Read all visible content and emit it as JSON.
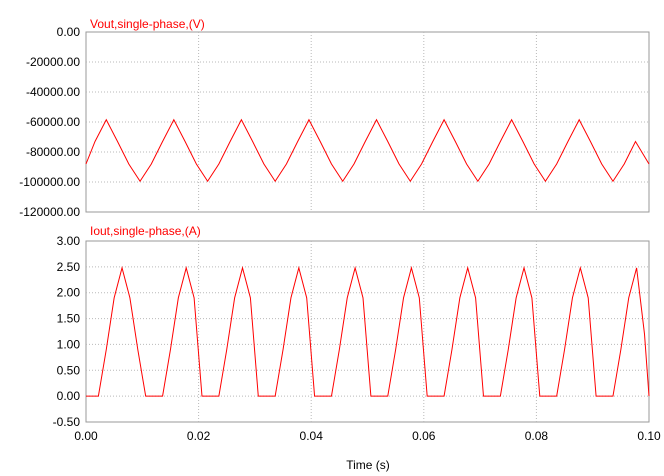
{
  "colors": {
    "trace": "#ff0000",
    "title": "#ff0000",
    "grid": "#b9b9b9",
    "frame": "#9a9a9a",
    "text": "#000000"
  },
  "chart_data": [
    {
      "type": "line",
      "title": "Vout,single-phase,(V)",
      "ylim": [
        -120000,
        0
      ],
      "yticks": [
        "0.00",
        "-20000.00",
        "-40000.00",
        "-60000.00",
        "-80000.00",
        "-100000.00",
        "-120000.00"
      ],
      "xlim": [
        0,
        0.1
      ],
      "grid": true,
      "series": [
        {
          "x": [
            0,
            0.0016,
            0.0036,
            0.0056,
            0.0076,
            0.0096,
            0.0116,
            0.0136,
            0.0156,
            0.0176,
            0.0196,
            0.0216,
            0.0236,
            0.0256,
            0.0276,
            0.0296,
            0.0316,
            0.0336,
            0.0356,
            0.0376,
            0.0396,
            0.0416,
            0.0436,
            0.0456,
            0.0476,
            0.0496,
            0.0516,
            0.0536,
            0.0556,
            0.0576,
            0.0596,
            0.0616,
            0.0636,
            0.0656,
            0.0676,
            0.0696,
            0.0716,
            0.0736,
            0.0756,
            0.0776,
            0.0796,
            0.0816,
            0.0836,
            0.0856,
            0.0876,
            0.0896,
            0.0916,
            0.0936,
            0.0956,
            0.0976,
            0.1
          ],
          "y": [
            -88000,
            -73000,
            -58500,
            -73000,
            -88000,
            -99500,
            -88000,
            -73000,
            -58500,
            -73000,
            -88000,
            -99500,
            -88000,
            -73000,
            -58500,
            -73000,
            -88000,
            -99500,
            -88000,
            -73000,
            -58500,
            -73000,
            -88000,
            -99500,
            -88000,
            -73000,
            -58500,
            -73000,
            -88000,
            -99500,
            -88000,
            -73000,
            -58500,
            -73000,
            -88000,
            -99500,
            -88000,
            -73000,
            -58500,
            -73000,
            -88000,
            -99500,
            -88000,
            -73000,
            -58500,
            -73000,
            -88000,
            -99500,
            -88000,
            -73000,
            -88000
          ]
        }
      ]
    },
    {
      "type": "line",
      "title": "Iout,single-phase,(A)",
      "ylim": [
        -0.5,
        3.0
      ],
      "yticks": [
        "3.00",
        "2.50",
        "2.00",
        "1.50",
        "1.00",
        "0.50",
        "0.00",
        "-0.50"
      ],
      "xlim": [
        0,
        0.1
      ],
      "xticks": [
        "0.00",
        "0.02",
        "0.04",
        "0.06",
        "0.08",
        "0.10"
      ],
      "xlabel": "Time (s)",
      "grid": true,
      "series": [
        {
          "x": [
            0,
            0.0022,
            0.0036,
            0.005,
            0.0064,
            0.0078,
            0.0092,
            0.0106,
            0.0136,
            0.015,
            0.0164,
            0.0178,
            0.0192,
            0.0206,
            0.0236,
            0.025,
            0.0264,
            0.0278,
            0.0292,
            0.0306,
            0.0336,
            0.035,
            0.0364,
            0.0378,
            0.0392,
            0.0406,
            0.0436,
            0.045,
            0.0464,
            0.0478,
            0.0492,
            0.0506,
            0.0536,
            0.055,
            0.0564,
            0.0578,
            0.0592,
            0.0606,
            0.0636,
            0.065,
            0.0664,
            0.0678,
            0.0692,
            0.0706,
            0.0736,
            0.075,
            0.0764,
            0.0778,
            0.0792,
            0.0806,
            0.0836,
            0.085,
            0.0864,
            0.0878,
            0.0892,
            0.0906,
            0.0936,
            0.095,
            0.0964,
            0.0978,
            0.0992,
            0.1
          ],
          "y": [
            0.0,
            0.0,
            0.9,
            1.9,
            2.48,
            1.9,
            0.9,
            0.0,
            0.0,
            0.9,
            1.9,
            2.48,
            1.9,
            0.0,
            0.0,
            0.9,
            1.9,
            2.48,
            1.9,
            0.0,
            0.0,
            0.9,
            1.9,
            2.48,
            1.9,
            0.0,
            0.0,
            0.9,
            1.9,
            2.48,
            1.9,
            0.0,
            0.0,
            0.9,
            1.9,
            2.48,
            1.9,
            0.0,
            0.0,
            0.9,
            1.9,
            2.48,
            1.9,
            0.0,
            0.0,
            0.9,
            1.9,
            2.48,
            1.9,
            0.0,
            0.0,
            0.9,
            1.9,
            2.48,
            1.9,
            0.0,
            0.0,
            0.9,
            1.9,
            2.48,
            1.2,
            0.0
          ]
        }
      ]
    }
  ]
}
